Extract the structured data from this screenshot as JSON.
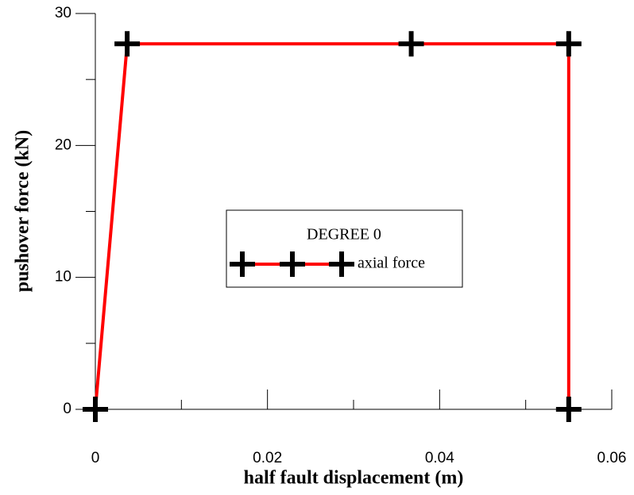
{
  "chart_data": {
    "type": "line",
    "xlabel": "half fault displacement (m)",
    "ylabel": "pushover force (kN)",
    "legend_title": "DEGREE 0",
    "legend": "center",
    "series": [
      {
        "name": "axial force",
        "color": "#ff0000",
        "x": [
          0,
          0.0037,
          0.0367,
          0.055,
          0.055
        ],
        "values": [
          0,
          27.7,
          27.7,
          27.7,
          0
        ]
      }
    ],
    "xlim": [
      0,
      0.06
    ],
    "xticks": [
      0,
      0.02,
      0.04,
      0.06
    ],
    "ylim": [
      0,
      30
    ],
    "yticks": [
      0,
      10,
      20,
      30
    ]
  }
}
